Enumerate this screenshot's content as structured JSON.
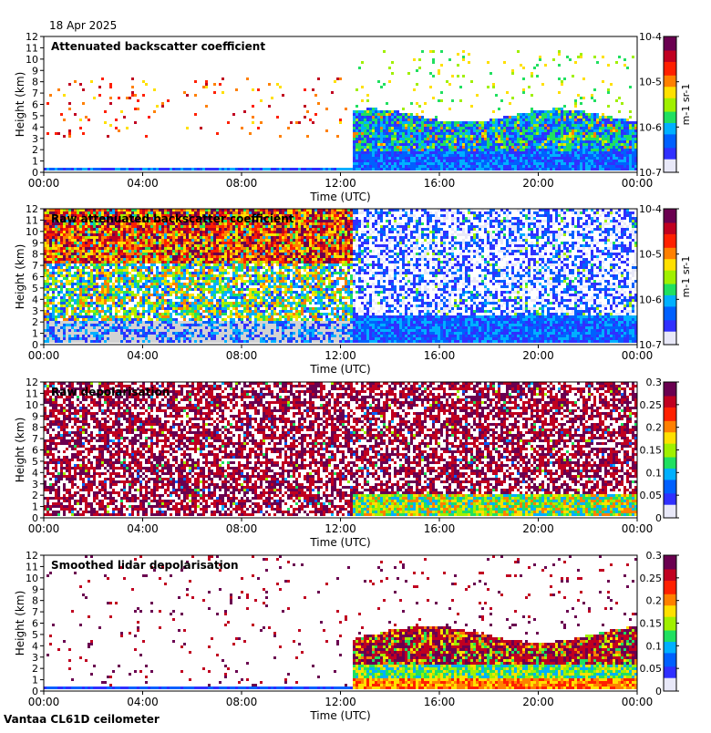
{
  "date": "18 Apr 2025",
  "footer": "Vantaa CL61D ceilometer",
  "colors": {
    "background_clear": "#ffffff",
    "low_signal": "#d2d2d2",
    "scale": [
      "#e8e8f8",
      "#3030ff",
      "#0060ff",
      "#00b0ff",
      "#20e060",
      "#a0f000",
      "#ffe000",
      "#ff8000",
      "#ff2000",
      "#c00020",
      "#6a0050"
    ]
  },
  "chart_data": [
    {
      "type": "heatmap",
      "title": "Attenuated backscatter coefficient",
      "xlabel": "Time (UTC)",
      "ylabel": "Height (km)",
      "xticks": [
        "00:00",
        "04:00",
        "08:00",
        "12:00",
        "16:00",
        "20:00",
        "00:00"
      ],
      "yticks": [
        "0",
        "1",
        "2",
        "3",
        "4",
        "5",
        "6",
        "7",
        "8",
        "9",
        "10",
        "11",
        "12"
      ],
      "xlim_hours": [
        0,
        24
      ],
      "ylim": [
        0,
        12
      ],
      "colorbar": {
        "scale": "log",
        "ticks": [
          "10-7",
          "10-6",
          "10-5",
          "10-4"
        ],
        "unit": "m-1 sr-1"
      }
    },
    {
      "type": "heatmap",
      "title": "Raw attenuated backscatter coefficient",
      "xlabel": "Time (UTC)",
      "ylabel": "Height (km)",
      "xticks": [
        "00:00",
        "04:00",
        "08:00",
        "12:00",
        "16:00",
        "20:00",
        "00:00"
      ],
      "yticks": [
        "0",
        "1",
        "2",
        "3",
        "4",
        "5",
        "6",
        "7",
        "8",
        "9",
        "10",
        "11",
        "12"
      ],
      "xlim_hours": [
        0,
        24
      ],
      "ylim": [
        0,
        12
      ],
      "colorbar": {
        "scale": "log",
        "ticks": [
          "10-7",
          "10-6",
          "10-5",
          "10-4"
        ],
        "unit": "m-1 sr-1"
      }
    },
    {
      "type": "heatmap",
      "title": "Raw depolarisation",
      "xlabel": "Time (UTC)",
      "ylabel": "Height (km)",
      "xticks": [
        "00:00",
        "04:00",
        "08:00",
        "12:00",
        "16:00",
        "20:00",
        "00:00"
      ],
      "yticks": [
        "0",
        "1",
        "2",
        "3",
        "4",
        "5",
        "6",
        "7",
        "8",
        "9",
        "10",
        "11",
        "12"
      ],
      "xlim_hours": [
        0,
        24
      ],
      "ylim": [
        0,
        12
      ],
      "colorbar": {
        "scale": "linear",
        "ticks": [
          "0",
          "0.05",
          "0.1",
          "0.15",
          "0.2",
          "0.25",
          "0.3"
        ],
        "range": [
          0,
          0.3
        ]
      }
    },
    {
      "type": "heatmap",
      "title": "Smoothed lidar depolarisation",
      "xlabel": "Time (UTC)",
      "ylabel": "Height (km)",
      "xticks": [
        "00:00",
        "04:00",
        "08:00",
        "12:00",
        "16:00",
        "20:00",
        "00:00"
      ],
      "yticks": [
        "0",
        "1",
        "2",
        "3",
        "4",
        "5",
        "6",
        "7",
        "8",
        "9",
        "10",
        "11",
        "12"
      ],
      "xlim_hours": [
        0,
        24
      ],
      "ylim": [
        0,
        12
      ],
      "colorbar": {
        "scale": "linear",
        "ticks": [
          "0",
          "0.05",
          "0.1",
          "0.15",
          "0.2",
          "0.25",
          "0.3"
        ],
        "range": [
          0,
          0.3
        ]
      }
    }
  ]
}
